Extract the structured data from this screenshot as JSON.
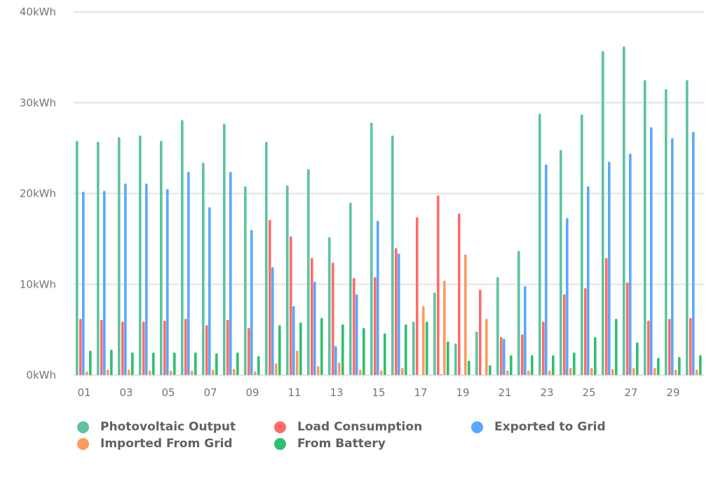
{
  "chart_data": {
    "type": "bar",
    "title": "",
    "xlabel": "",
    "ylabel": "",
    "unit": "kWh",
    "ylim": [
      0,
      40
    ],
    "yticks": [
      "0kWh",
      "10kWh",
      "20kWh",
      "30kWh",
      "40kWh"
    ],
    "grid": true,
    "legend_position": "bottom",
    "categories": [
      "01",
      "02",
      "03",
      "04",
      "05",
      "06",
      "07",
      "08",
      "09",
      "10",
      "11",
      "12",
      "13",
      "14",
      "15",
      "16",
      "17",
      "18",
      "19",
      "20",
      "21",
      "22",
      "23",
      "24",
      "25",
      "26",
      "27",
      "28",
      "29",
      "30"
    ],
    "xtick_labels": [
      "01",
      "03",
      "05",
      "07",
      "09",
      "11",
      "13",
      "15",
      "17",
      "19",
      "21",
      "23",
      "25",
      "27",
      "29"
    ],
    "series": [
      {
        "name": "Photovoltaic Output",
        "color": "#5bc49f",
        "values": [
          25.8,
          25.7,
          26.2,
          26.4,
          25.8,
          28.1,
          23.4,
          27.7,
          20.8,
          25.7,
          20.9,
          22.7,
          15.2,
          19.0,
          27.8,
          26.4,
          5.9,
          9.1,
          3.5,
          4.8,
          10.8,
          13.7,
          28.8,
          24.8,
          28.7,
          35.7,
          36.2,
          32.5,
          31.5,
          32.5
        ]
      },
      {
        "name": "Load Consumption",
        "color": "#ff6b6b",
        "values": [
          6.2,
          6.1,
          5.9,
          5.9,
          6.0,
          6.2,
          5.5,
          6.1,
          5.2,
          17.1,
          15.3,
          12.9,
          12.4,
          10.7,
          10.8,
          14.0,
          17.4,
          19.8,
          17.8,
          9.4,
          4.2,
          4.5,
          5.9,
          8.9,
          9.6,
          12.9,
          10.2,
          6.0,
          6.2,
          6.3
        ]
      },
      {
        "name": "Exported to Grid",
        "color": "#5aa8ff",
        "values": [
          20.2,
          20.3,
          21.1,
          21.1,
          20.5,
          22.4,
          18.5,
          22.4,
          16.0,
          11.9,
          7.6,
          10.3,
          3.2,
          8.9,
          17.0,
          13.4,
          0,
          0.1,
          0,
          0,
          4.0,
          9.8,
          23.2,
          17.3,
          20.8,
          23.5,
          24.4,
          27.3,
          26.1,
          26.8
        ]
      },
      {
        "name": "Imported From Grid",
        "color": "#ff9a5c",
        "values": [
          0.4,
          0.6,
          0.6,
          0.5,
          0.5,
          0.5,
          0.6,
          0.7,
          0.4,
          1.3,
          2.7,
          1.0,
          1.4,
          0.6,
          0.5,
          0.8,
          7.6,
          10.4,
          13.3,
          6.2,
          0.5,
          0.5,
          0.5,
          0.8,
          0.8,
          0.7,
          0.8,
          0.8,
          0.6,
          0.6
        ]
      },
      {
        "name": "From Battery",
        "color": "#2fbf71",
        "values": [
          2.7,
          2.8,
          2.5,
          2.5,
          2.5,
          2.5,
          2.4,
          2.5,
          2.1,
          5.5,
          5.8,
          6.3,
          5.6,
          5.2,
          4.6,
          5.6,
          5.9,
          3.7,
          1.6,
          1.1,
          2.2,
          2.2,
          2.2,
          2.5,
          4.2,
          6.2,
          3.6,
          1.9,
          2.0,
          2.2
        ]
      }
    ]
  }
}
